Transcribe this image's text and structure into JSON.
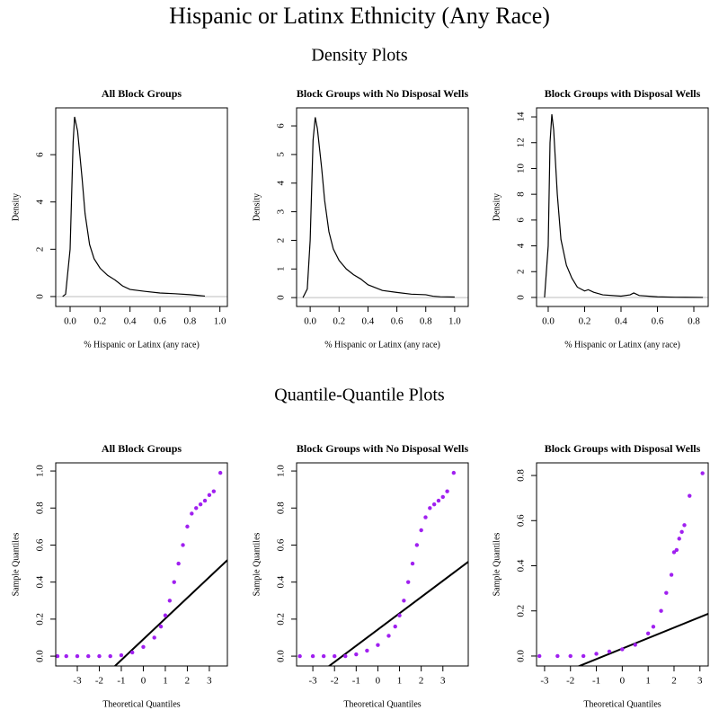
{
  "title": "Hispanic or Latinx Ethnicity (Any Race)",
  "sections": [
    "Density Plots",
    "Quantile-Quantile Plots"
  ],
  "chart_data": [
    {
      "type": "line",
      "title": "All Block Groups",
      "x_label": "% Hispanic or Latinx (any race)",
      "y_label": "Density",
      "color": "#000000",
      "zero_line": true,
      "x": [
        -0.05,
        -0.03,
        0,
        0.02,
        0.03,
        0.05,
        0.08,
        0.1,
        0.13,
        0.16,
        0.2,
        0.25,
        0.3,
        0.35,
        0.4,
        0.5,
        0.6,
        0.7,
        0.8,
        0.85,
        0.9
      ],
      "values": [
        0,
        0.1,
        2,
        6.5,
        7.6,
        7,
        5,
        3.5,
        2.2,
        1.6,
        1.2,
        0.9,
        0.7,
        0.45,
        0.3,
        0.22,
        0.15,
        0.12,
        0.08,
        0.05,
        0.02
      ],
      "xlim": [
        -0.096,
        1.05
      ],
      "ylim": [
        -0.42,
        7.98
      ],
      "xticks": [
        {
          "value": 0,
          "label": "0.0"
        },
        {
          "value": 0.2,
          "label": "0.2"
        },
        {
          "value": 0.4,
          "label": "0.4"
        },
        {
          "value": 0.6,
          "label": "0.6"
        },
        {
          "value": 0.8,
          "label": "0.8"
        },
        {
          "value": 1,
          "label": "1.0"
        }
      ],
      "yticks": [
        0,
        2,
        4,
        6
      ]
    },
    {
      "type": "line",
      "title": "Block Groups with No Disposal Wells",
      "x_label": "% Hispanic or Latinx (any race)",
      "y_label": "Density",
      "color": "#000000",
      "zero_line": true,
      "x": [
        -0.05,
        -0.02,
        0,
        0.02,
        0.035,
        0.05,
        0.08,
        0.1,
        0.13,
        0.16,
        0.2,
        0.25,
        0.3,
        0.35,
        0.4,
        0.5,
        0.6,
        0.7,
        0.8,
        0.85,
        0.9,
        1.0
      ],
      "values": [
        0,
        0.3,
        2,
        5.5,
        6.3,
        5.9,
        4.5,
        3.4,
        2.3,
        1.7,
        1.3,
        1,
        0.8,
        0.65,
        0.45,
        0.25,
        0.18,
        0.12,
        0.1,
        0.05,
        0.03,
        0.02
      ],
      "xlim": [
        -0.094,
        1.094
      ],
      "ylim": [
        -0.31,
        6.63
      ],
      "xticks": [
        {
          "value": 0,
          "label": "0.0"
        },
        {
          "value": 0.2,
          "label": "0.2"
        },
        {
          "value": 0.4,
          "label": "0.4"
        },
        {
          "value": 0.6,
          "label": "0.6"
        },
        {
          "value": 0.8,
          "label": "0.8"
        },
        {
          "value": 1,
          "label": "1.0"
        }
      ],
      "yticks": [
        0,
        1,
        2,
        3,
        4,
        5,
        6
      ]
    },
    {
      "type": "line",
      "title": "Block Groups with Disposal Wells",
      "x_label": "% Hispanic or Latinx (any race)",
      "y_label": "Density",
      "color": "#000000",
      "zero_line": true,
      "x": [
        -0.02,
        0,
        0.01,
        0.02,
        0.03,
        0.05,
        0.07,
        0.1,
        0.13,
        0.16,
        0.2,
        0.22,
        0.25,
        0.3,
        0.4,
        0.45,
        0.47,
        0.5,
        0.6,
        0.7,
        0.85
      ],
      "values": [
        0,
        4,
        12,
        14.2,
        13,
        8,
        4.5,
        2.5,
        1.5,
        0.8,
        0.5,
        0.6,
        0.4,
        0.2,
        0.1,
        0.2,
        0.35,
        0.15,
        0.05,
        0.02,
        0
      ],
      "xlim": [
        -0.064,
        0.879
      ],
      "ylim": [
        -0.7,
        14.7
      ],
      "xticks": [
        {
          "value": 0,
          "label": "0.0"
        },
        {
          "value": 0.2,
          "label": "0.2"
        },
        {
          "value": 0.4,
          "label": "0.4"
        },
        {
          "value": 0.6,
          "label": "0.6"
        },
        {
          "value": 0.8,
          "label": "0.8"
        }
      ],
      "yticks": [
        0,
        2,
        4,
        6,
        8,
        10,
        12,
        14
      ]
    },
    {
      "type": "scatter",
      "title": "All Block Groups",
      "x_label": "Theoretical Quantiles",
      "y_label": "Sample Quantiles",
      "color": "#a020f0",
      "x": [
        -3.9,
        -3.5,
        -3,
        -2.5,
        -2,
        -1.5,
        -1,
        -0.5,
        0,
        0.5,
        0.8,
        1,
        1.2,
        1.4,
        1.6,
        1.8,
        2,
        2.2,
        2.4,
        2.6,
        2.8,
        3,
        3.2,
        3.5
      ],
      "values": [
        0,
        0,
        0,
        0,
        0,
        0,
        0.005,
        0.02,
        0.05,
        0.1,
        0.16,
        0.22,
        0.3,
        0.4,
        0.5,
        0.6,
        0.7,
        0.77,
        0.8,
        0.82,
        0.84,
        0.87,
        0.89,
        0.99
      ],
      "reference_line": {
        "intercept": 0.091,
        "slope": 0.112
      },
      "xlim": [
        -3.98,
        3.82
      ],
      "ylim": [
        -0.053,
        1.044
      ],
      "xticks": [
        -3,
        -2,
        -1,
        0,
        1,
        2,
        3
      ],
      "yticks": [
        {
          "value": 0,
          "label": "0.0"
        },
        {
          "value": 0.2,
          "label": "0.2"
        },
        {
          "value": 0.4,
          "label": "0.4"
        },
        {
          "value": 0.6,
          "label": "0.6"
        },
        {
          "value": 0.8,
          "label": "0.8"
        },
        {
          "value": 1,
          "label": "1.0"
        }
      ]
    },
    {
      "type": "scatter",
      "title": "Block Groups with No Disposal Wells",
      "x_label": "Theoretical Quantiles",
      "y_label": "Sample Quantiles",
      "color": "#a020f0",
      "x": [
        -3.6,
        -3,
        -2.5,
        -2,
        -1.5,
        -1,
        -0.5,
        0,
        0.5,
        0.8,
        1,
        1.2,
        1.4,
        1.6,
        1.8,
        2,
        2.2,
        2.4,
        2.6,
        2.8,
        3,
        3.2,
        3.5
      ],
      "values": [
        0,
        0,
        0,
        0,
        0,
        0.01,
        0.03,
        0.06,
        0.11,
        0.16,
        0.22,
        0.3,
        0.4,
        0.5,
        0.6,
        0.68,
        0.75,
        0.8,
        0.82,
        0.84,
        0.86,
        0.89,
        0.99
      ],
      "reference_line": {
        "intercept": 0.144,
        "slope": 0.0877
      },
      "xlim": [
        -3.75,
        4.17
      ],
      "ylim": [
        -0.053,
        1.044
      ],
      "xticks": [
        -3,
        -2,
        -1,
        0,
        1,
        2,
        3
      ],
      "yticks": [
        {
          "value": 0,
          "label": "0.0"
        },
        {
          "value": 0.2,
          "label": "0.2"
        },
        {
          "value": 0.4,
          "label": "0.4"
        },
        {
          "value": 0.6,
          "label": "0.6"
        },
        {
          "value": 0.8,
          "label": "0.8"
        },
        {
          "value": 1,
          "label": "1.0"
        }
      ]
    },
    {
      "type": "scatter",
      "title": "Block Groups with Disposal Wells",
      "x_label": "Theoretical Quantiles",
      "y_label": "Sample Quantiles",
      "color": "#a020f0",
      "x": [
        -3.2,
        -2.5,
        -2,
        -1.5,
        -1,
        -0.5,
        0,
        0.5,
        1,
        1.2,
        1.5,
        1.7,
        1.9,
        2,
        2.1,
        2.2,
        2.3,
        2.4,
        2.6,
        3.1
      ],
      "values": [
        0,
        0,
        0,
        0,
        0.01,
        0.02,
        0.03,
        0.05,
        0.1,
        0.13,
        0.2,
        0.28,
        0.36,
        0.46,
        0.47,
        0.52,
        0.55,
        0.58,
        0.71,
        0.81
      ],
      "reference_line": {
        "intercept": 0.033,
        "slope": 0.0465
      },
      "xlim": [
        -3.31,
        3.32
      ],
      "ylim": [
        -0.044,
        0.856
      ],
      "xticks": [
        -3,
        -2,
        -1,
        0,
        1,
        2,
        3
      ],
      "yticks": [
        {
          "value": 0,
          "label": "0.0"
        },
        {
          "value": 0.2,
          "label": "0.2"
        },
        {
          "value": 0.4,
          "label": "0.4"
        },
        {
          "value": 0.6,
          "label": "0.6"
        },
        {
          "value": 0.8,
          "label": "0.8"
        }
      ]
    }
  ]
}
